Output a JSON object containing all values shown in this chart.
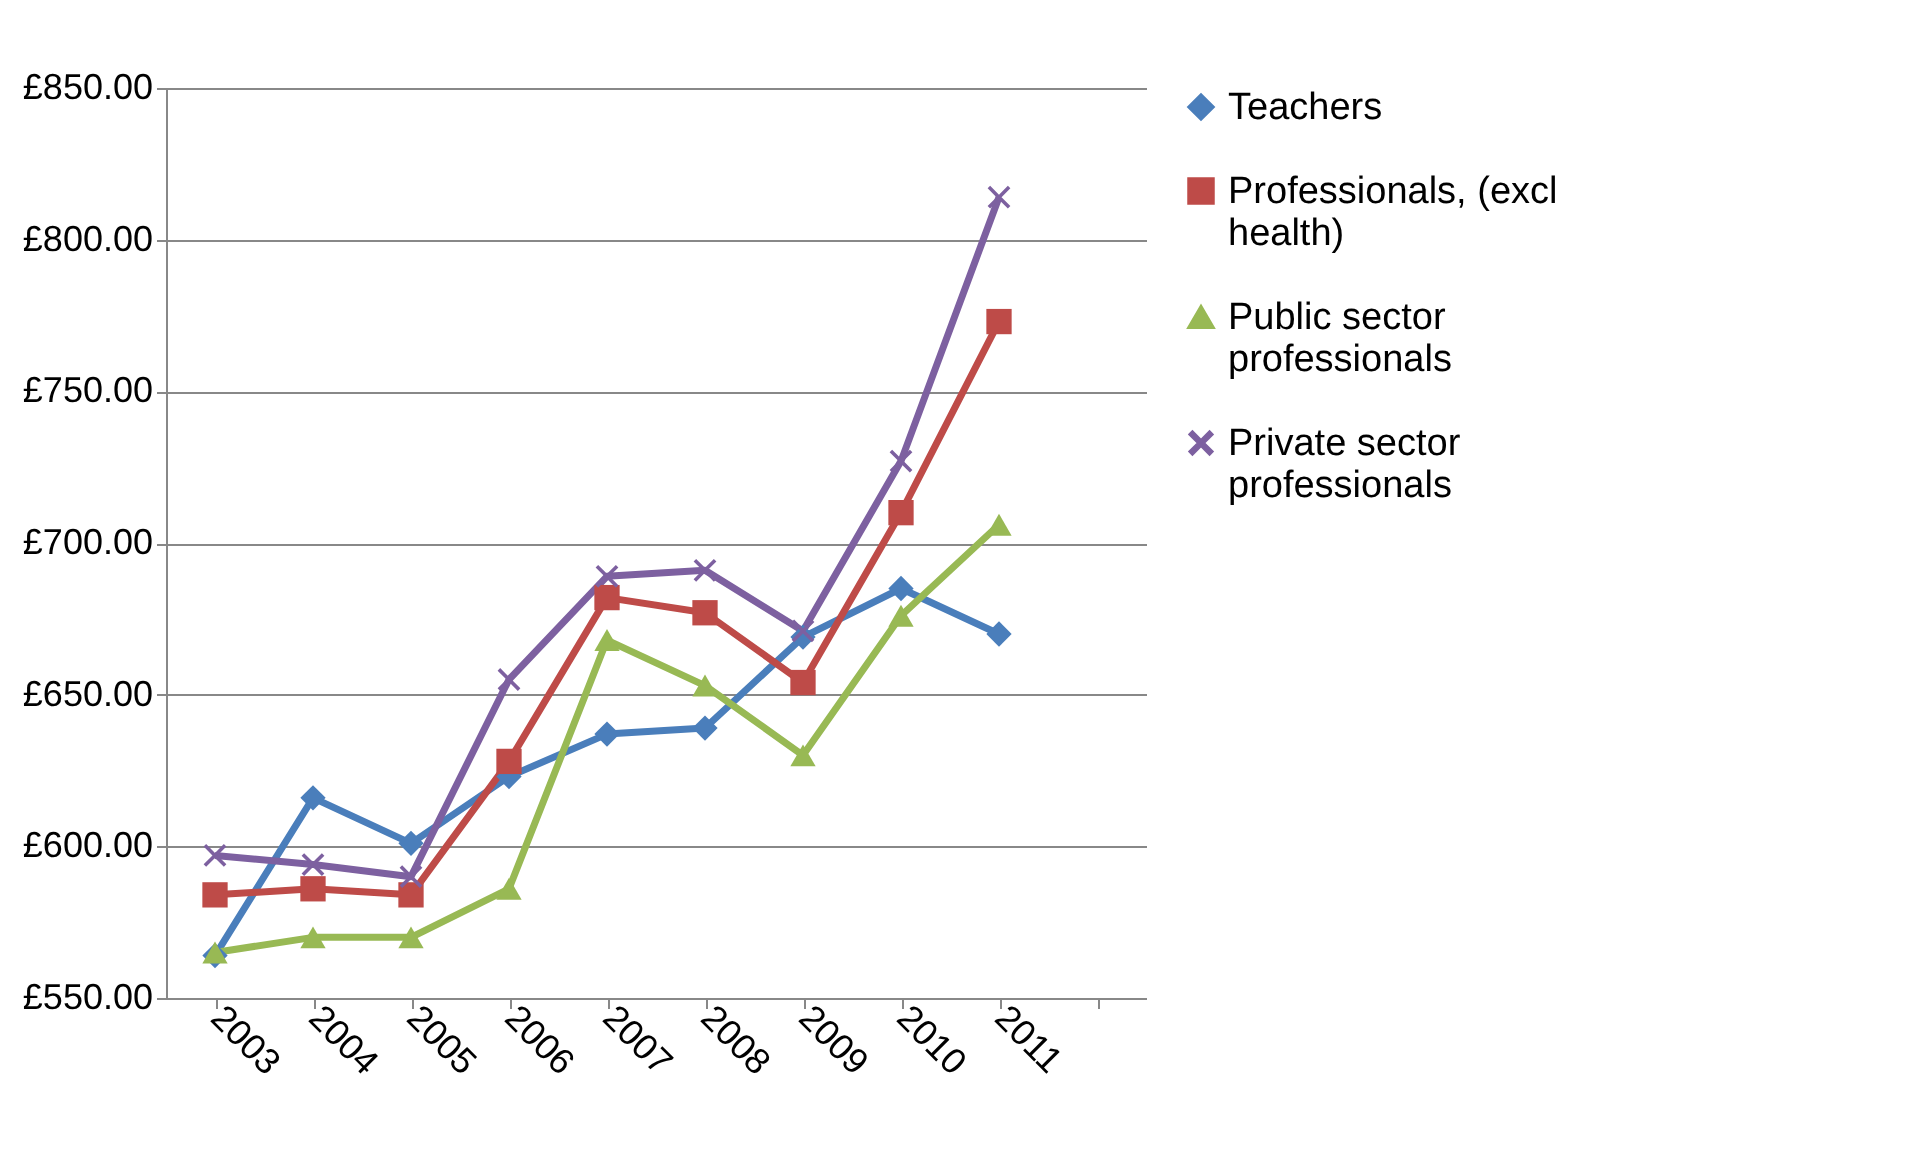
{
  "chart_data": {
    "type": "line",
    "categories": [
      "2003",
      "2004",
      "2005",
      "2006",
      "2007",
      "2008",
      "2009",
      "2010",
      "2011",
      null
    ],
    "series": [
      {
        "name": "Teachers",
        "color": "#4a7ebb",
        "marker": "diamond",
        "values": [
          564,
          616,
          601,
          623,
          637,
          639,
          669,
          685,
          670,
          null
        ]
      },
      {
        "name": "Professionals, (excl health)",
        "color": "#be4b48",
        "marker": "square",
        "values": [
          584,
          586,
          584,
          628,
          682,
          677,
          654,
          710,
          773,
          null
        ]
      },
      {
        "name": "Public sector professionals",
        "color": "#98b954",
        "marker": "triangle",
        "values": [
          565,
          570,
          570,
          586,
          668,
          653,
          630,
          676,
          706,
          null
        ]
      },
      {
        "name": "Private sector professionals",
        "color": "#7d60a0",
        "marker": "cross",
        "values": [
          597,
          594,
          590,
          655,
          689,
          691,
          671,
          727,
          814,
          null
        ]
      }
    ],
    "ylim": [
      550,
      850
    ],
    "yticks": [
      {
        "value": 550,
        "label": "£550.00"
      },
      {
        "value": 600,
        "label": "£600.00"
      },
      {
        "value": 650,
        "label": "£650.00"
      },
      {
        "value": 700,
        "label": "£700.00"
      },
      {
        "value": 750,
        "label": "£750.00"
      },
      {
        "value": 800,
        "label": "£800.00"
      },
      {
        "value": 850,
        "label": "£850.00"
      }
    ],
    "grid": "y",
    "legend": "right",
    "line_style": "solid"
  }
}
